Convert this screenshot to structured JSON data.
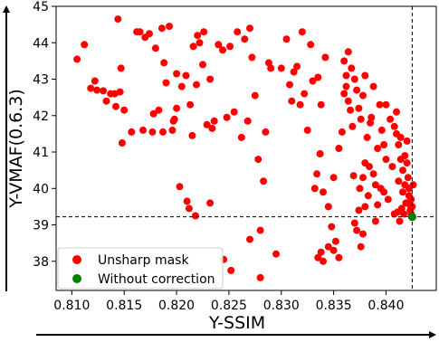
{
  "chart_data": {
    "type": "scatter",
    "xlabel": "Y-SSIM",
    "ylabel": "Y-VMAF(0.6.3)",
    "xlim": [
      0.8085,
      0.8448
    ],
    "ylim": [
      37.2,
      45.0
    ],
    "xticks": [
      "0.810",
      "0.815",
      "0.820",
      "0.825",
      "0.830",
      "0.835",
      "0.840"
    ],
    "yticks": [
      "38",
      "39",
      "40",
      "41",
      "42",
      "43",
      "44",
      "45"
    ],
    "grid": false,
    "legend_position": "lower-left",
    "reference_lines": {
      "x": 0.8425,
      "y": 39.22
    },
    "series": [
      {
        "name": "Unsharp mask",
        "color": "#ff0000",
        "points": [
          [
            0.8105,
            43.55
          ],
          [
            0.8112,
            43.95
          ],
          [
            0.8118,
            42.75
          ],
          [
            0.8122,
            42.95
          ],
          [
            0.8124,
            42.7
          ],
          [
            0.813,
            42.68
          ],
          [
            0.8133,
            42.4
          ],
          [
            0.8137,
            42.6
          ],
          [
            0.8141,
            42.6
          ],
          [
            0.8142,
            42.25
          ],
          [
            0.8144,
            44.65
          ],
          [
            0.8146,
            42.65
          ],
          [
            0.8147,
            43.3
          ],
          [
            0.8148,
            41.25
          ],
          [
            0.815,
            42.15
          ],
          [
            0.8157,
            41.55
          ],
          [
            0.8162,
            44.3
          ],
          [
            0.8165,
            44.3
          ],
          [
            0.8168,
            41.6
          ],
          [
            0.817,
            44.15
          ],
          [
            0.8174,
            44.25
          ],
          [
            0.8177,
            41.55
          ],
          [
            0.8178,
            42.05
          ],
          [
            0.818,
            43.85
          ],
          [
            0.8183,
            42.15
          ],
          [
            0.8186,
            44.4
          ],
          [
            0.8187,
            41.55
          ],
          [
            0.8188,
            43.45
          ],
          [
            0.819,
            42.9
          ],
          [
            0.8193,
            44.45
          ],
          [
            0.8196,
            41.6
          ],
          [
            0.8197,
            41.85
          ],
          [
            0.8198,
            41.9
          ],
          [
            0.82,
            43.15
          ],
          [
            0.8203,
            40.05
          ],
          [
            0.821,
            39.65
          ],
          [
            0.8212,
            39.45
          ],
          [
            0.8215,
            41.45
          ],
          [
            0.8218,
            39.25
          ],
          [
            0.822,
            44.2
          ],
          [
            0.8222,
            44.0
          ],
          [
            0.8225,
            43.4
          ],
          [
            0.8229,
            41.75
          ],
          [
            0.8232,
            43.0
          ],
          [
            0.82,
            42.2
          ],
          [
            0.8205,
            42.8
          ],
          [
            0.8209,
            43.1
          ],
          [
            0.8213,
            42.3
          ],
          [
            0.8216,
            43.9
          ],
          [
            0.8219,
            42.85
          ],
          [
            0.8226,
            44.3
          ],
          [
            0.8234,
            41.65
          ],
          [
            0.8236,
            41.85
          ],
          [
            0.824,
            43.95
          ],
          [
            0.8244,
            43.8
          ],
          [
            0.8248,
            41.95
          ],
          [
            0.8251,
            43.9
          ],
          [
            0.8255,
            42.1
          ],
          [
            0.8258,
            44.3
          ],
          [
            0.8262,
            41.4
          ],
          [
            0.8265,
            44.1
          ],
          [
            0.8268,
            41.85
          ],
          [
            0.827,
            44.4
          ],
          [
            0.8272,
            43.6
          ],
          [
            0.8275,
            42.55
          ],
          [
            0.8278,
            40.8
          ],
          [
            0.828,
            37.55
          ],
          [
            0.8283,
            40.2
          ],
          [
            0.8285,
            41.55
          ],
          [
            0.8288,
            43.45
          ],
          [
            0.829,
            43.3
          ],
          [
            0.8232,
            39.6
          ],
          [
            0.8245,
            38.05
          ],
          [
            0.8252,
            37.75
          ],
          [
            0.827,
            38.6
          ],
          [
            0.828,
            38.85
          ],
          [
            0.8295,
            38.2
          ],
          [
            0.83,
            43.3
          ],
          [
            0.8305,
            44.1
          ],
          [
            0.8308,
            42.85
          ],
          [
            0.831,
            42.4
          ],
          [
            0.8312,
            43.2
          ],
          [
            0.8315,
            43.35
          ],
          [
            0.8318,
            42.3
          ],
          [
            0.832,
            44.3
          ],
          [
            0.8322,
            42.6
          ],
          [
            0.8325,
            41.6
          ],
          [
            0.8328,
            43.95
          ],
          [
            0.833,
            42.95
          ],
          [
            0.8332,
            40.0
          ],
          [
            0.8334,
            40.4
          ],
          [
            0.8335,
            43.05
          ],
          [
            0.8337,
            40.95
          ],
          [
            0.8338,
            42.3
          ],
          [
            0.834,
            39.9
          ],
          [
            0.8342,
            43.6
          ],
          [
            0.8335,
            38.1
          ],
          [
            0.8338,
            38.25
          ],
          [
            0.834,
            38.0
          ],
          [
            0.8345,
            38.4
          ],
          [
            0.8348,
            38.95
          ],
          [
            0.835,
            38.3
          ],
          [
            0.8352,
            38.55
          ],
          [
            0.8355,
            38.1
          ],
          [
            0.8345,
            39.5
          ],
          [
            0.835,
            40.3
          ],
          [
            0.8355,
            41.1
          ],
          [
            0.8358,
            41.55
          ],
          [
            0.836,
            42.6
          ],
          [
            0.8362,
            43.1
          ],
          [
            0.8364,
            43.75
          ],
          [
            0.8366,
            42.15
          ],
          [
            0.8368,
            41.7
          ],
          [
            0.8369,
            40.35
          ],
          [
            0.837,
            39.05
          ],
          [
            0.8372,
            38.85
          ],
          [
            0.8374,
            39.4
          ],
          [
            0.8376,
            38.4
          ],
          [
            0.8378,
            38.75
          ],
          [
            0.838,
            39.5
          ],
          [
            0.836,
            43.5
          ],
          [
            0.8362,
            42.8
          ],
          [
            0.8364,
            42.4
          ],
          [
            0.8367,
            43.3
          ],
          [
            0.837,
            43.0
          ],
          [
            0.8372,
            42.7
          ],
          [
            0.8374,
            42.2
          ],
          [
            0.8376,
            41.9
          ],
          [
            0.8378,
            42.55
          ],
          [
            0.838,
            43.1
          ],
          [
            0.8382,
            41.4
          ],
          [
            0.8384,
            40.6
          ],
          [
            0.8386,
            41.95
          ],
          [
            0.8388,
            42.8
          ],
          [
            0.839,
            40.1
          ],
          [
            0.8392,
            39.55
          ],
          [
            0.8394,
            42.3
          ],
          [
            0.8396,
            41.6
          ],
          [
            0.8398,
            39.9
          ],
          [
            0.84,
            40.8
          ],
          [
            0.8375,
            40.0
          ],
          [
            0.8378,
            40.3
          ],
          [
            0.838,
            40.7
          ],
          [
            0.8383,
            39.8
          ],
          [
            0.8385,
            41.8
          ],
          [
            0.8388,
            40.4
          ],
          [
            0.839,
            39.1
          ],
          [
            0.8392,
            41.1
          ],
          [
            0.8395,
            40.0
          ],
          [
            0.8398,
            41.2
          ],
          [
            0.84,
            42.3
          ],
          [
            0.8402,
            39.7
          ],
          [
            0.8404,
            41.9
          ],
          [
            0.8406,
            40.6
          ],
          [
            0.8408,
            39.3
          ],
          [
            0.841,
            42.1
          ],
          [
            0.8412,
            40.2
          ],
          [
            0.8414,
            41.4
          ],
          [
            0.8416,
            39.9
          ],
          [
            0.8418,
            40.9
          ],
          [
            0.8408,
            41.7
          ],
          [
            0.841,
            41.5
          ],
          [
            0.8412,
            41.2
          ],
          [
            0.8414,
            40.8
          ],
          [
            0.8416,
            40.5
          ],
          [
            0.8418,
            40.1
          ],
          [
            0.8419,
            39.6
          ],
          [
            0.842,
            41.3
          ],
          [
            0.842,
            40.7
          ],
          [
            0.8421,
            40.3
          ],
          [
            0.8422,
            40.0
          ],
          [
            0.8422,
            39.8
          ],
          [
            0.8423,
            39.55
          ],
          [
            0.8423,
            39.4
          ],
          [
            0.8424,
            39.3
          ],
          [
            0.8424,
            39.7
          ],
          [
            0.8425,
            39.5
          ],
          [
            0.8426,
            40.1
          ],
          [
            0.8417,
            39.3
          ],
          [
            0.8415,
            39.45
          ],
          [
            0.8413,
            39.1
          ],
          [
            0.8411,
            39.35
          ]
        ]
      },
      {
        "name": "Without correction",
        "color": "#008000",
        "points": [
          [
            0.8425,
            39.22
          ]
        ]
      }
    ]
  }
}
